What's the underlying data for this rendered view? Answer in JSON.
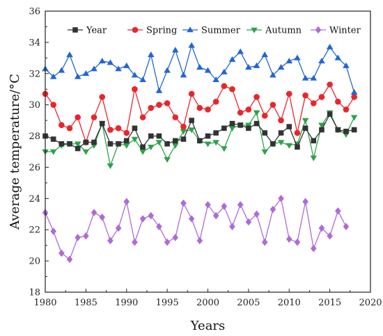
{
  "chart_data": {
    "type": "line",
    "xlabel": "Years",
    "ylabel": "Average temperature/°C",
    "xlim": [
      1980,
      2020
    ],
    "ylim": [
      18,
      36
    ],
    "xticks": [
      "1980",
      "1985",
      "1990",
      "1995",
      "2000",
      "2005",
      "2010",
      "2015",
      "2020"
    ],
    "yticks": [
      "18",
      "20",
      "22",
      "24",
      "26",
      "28",
      "30",
      "32",
      "34",
      "36"
    ],
    "legend_position": "top",
    "x": [
      1980,
      1981,
      1982,
      1983,
      1984,
      1985,
      1986,
      1987,
      1988,
      1989,
      1990,
      1991,
      1992,
      1993,
      1994,
      1995,
      1996,
      1997,
      1998,
      1999,
      2000,
      2001,
      2002,
      2003,
      2004,
      2005,
      2006,
      2007,
      2008,
      2009,
      2010,
      2011,
      2012,
      2013,
      2014,
      2015,
      2016,
      2017,
      2018
    ],
    "series": [
      {
        "name": "Year",
        "color": "#333333",
        "marker": "square",
        "values": [
          28.0,
          27.8,
          27.5,
          27.5,
          27.2,
          27.6,
          27.6,
          28.8,
          27.5,
          27.5,
          27.7,
          28.5,
          27.3,
          28.0,
          28.0,
          27.5,
          27.7,
          27.8,
          29.0,
          27.7,
          28.0,
          28.2,
          28.5,
          28.8,
          28.7,
          28.5,
          28.8,
          28.2,
          27.5,
          28.2,
          28.6,
          27.3,
          28.5,
          27.7,
          28.4,
          29.4,
          28.4,
          28.3,
          28.4
        ]
      },
      {
        "name": "Spring",
        "color": "#e8262b",
        "marker": "circle",
        "values": [
          30.7,
          30.0,
          28.7,
          28.5,
          29.2,
          27.6,
          29.2,
          30.5,
          28.4,
          28.5,
          28.2,
          31.0,
          29.2,
          29.8,
          30.0,
          30.1,
          29.2,
          28.6,
          30.7,
          29.8,
          29.7,
          30.2,
          31.2,
          31.0,
          29.5,
          29.7,
          30.5,
          29.3,
          30.0,
          29.0,
          30.7,
          28.2,
          30.6,
          30.1,
          30.5,
          31.3,
          30.2,
          29.7,
          30.5
        ]
      },
      {
        "name": "Summer",
        "color": "#2166d4",
        "marker": "triangle",
        "values": [
          32.3,
          31.8,
          32.2,
          33.2,
          31.8,
          32.0,
          32.3,
          32.8,
          32.7,
          32.3,
          32.5,
          31.9,
          31.6,
          33.2,
          30.9,
          32.2,
          33.5,
          31.9,
          33.8,
          32.4,
          32.2,
          31.6,
          32.1,
          32.9,
          33.4,
          32.4,
          32.5,
          33.2,
          31.9,
          32.4,
          32.8,
          33.0,
          31.7,
          31.7,
          32.8,
          33.7,
          33.0,
          32.5,
          30.8
        ]
      },
      {
        "name": "Autumn",
        "color": "#2ea24a",
        "marker": "triangle-down",
        "values": [
          27.0,
          27.0,
          27.4,
          27.5,
          27.5,
          27.0,
          27.4,
          28.8,
          26.1,
          27.5,
          27.4,
          27.8,
          27.0,
          27.3,
          27.6,
          26.5,
          27.4,
          28.3,
          28.4,
          27.7,
          27.5,
          27.6,
          27.2,
          28.5,
          28.7,
          28.7,
          29.5,
          27.0,
          27.5,
          27.6,
          27.4,
          27.5,
          29.0,
          26.6,
          28.7,
          29.5,
          28.4,
          28.1,
          29.2
        ]
      },
      {
        "name": "Winter",
        "color": "#b06ad8",
        "marker": "diamond",
        "values": [
          23.1,
          21.9,
          20.5,
          20.1,
          21.5,
          21.6,
          23.1,
          22.8,
          21.3,
          22.1,
          23.8,
          21.2,
          22.7,
          22.9,
          22.2,
          21.2,
          21.5,
          23.7,
          22.7,
          21.3,
          23.6,
          22.9,
          23.5,
          22.2,
          23.6,
          22.5,
          23.0,
          21.2,
          23.3,
          24.0,
          21.4,
          21.2,
          23.8,
          20.8,
          22.1,
          21.6,
          23.2,
          22.2,
          null
        ]
      }
    ]
  }
}
